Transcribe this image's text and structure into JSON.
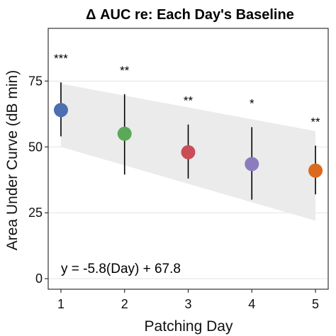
{
  "chart_data": {
    "type": "scatter",
    "title": "Δ AUC re: Each Day's Baseline",
    "xlabel": "Patching Day",
    "ylabel": "Area Under Curve (dB min)",
    "x": [
      1,
      2,
      3,
      4,
      5
    ],
    "xticks": [
      "1",
      "2",
      "3",
      "4",
      "5"
    ],
    "yticks": [
      "0",
      "25",
      "50",
      "75"
    ],
    "xlim": [
      0.8,
      5.2
    ],
    "ylim": [
      -4,
      95
    ],
    "grid": true,
    "mean": [
      64,
      55,
      48,
      43.5,
      41
    ],
    "error_low": [
      54,
      39.5,
      38,
      30,
      32
    ],
    "error_high": [
      74.5,
      70,
      58.5,
      57.5,
      50.5
    ],
    "point_colors": [
      "#4c6fb0",
      "#5aa95a",
      "#c94d57",
      "#8c7cbf",
      "#d96a1e"
    ],
    "significance": [
      "***",
      "**",
      "**",
      "*",
      "**"
    ],
    "regression": {
      "equation": "y = -5.8(Day) + 67.8",
      "slope": -5.8,
      "intercept": 67.8,
      "ci_band": {
        "x": [
          1,
          5
        ],
        "upper": [
          74,
          56
        ],
        "lower": [
          50,
          22
        ]
      },
      "band_color": "#ebebeb"
    }
  }
}
